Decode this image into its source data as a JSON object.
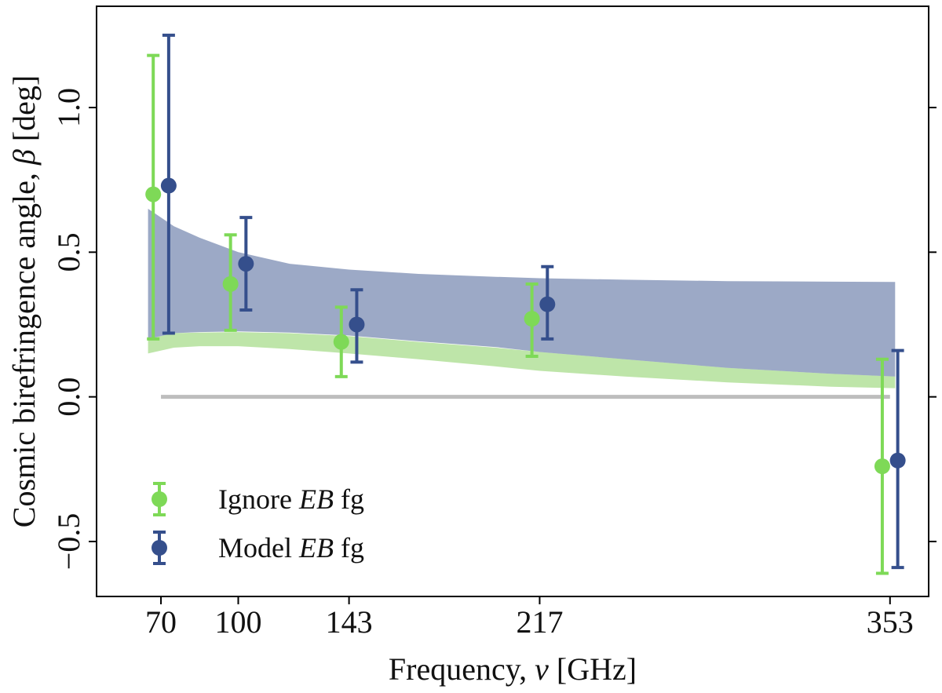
{
  "chart_data": {
    "type": "scatter",
    "xlabel_main": "Frequency, ",
    "xlabel_symbol": "ν",
    "xlabel_unit": " [GHz]",
    "ylabel_main": "Cosmic birefringence angle, ",
    "ylabel_symbol": "β",
    "ylabel_unit": " [deg]",
    "xlim": [
      45,
      368
    ],
    "ylim": [
      -0.69,
      1.35
    ],
    "x_ticks": [
      70,
      100,
      143,
      217,
      353
    ],
    "x_tick_labels": [
      "70",
      "100",
      "143",
      "217",
      "353"
    ],
    "y_ticks": [
      -0.5,
      0.0,
      0.5,
      1.0
    ],
    "y_tick_labels": [
      "−0.5",
      "0.0",
      "0.5",
      "1.0"
    ],
    "zero_line": {
      "x": [
        70,
        353
      ],
      "y": 0.0,
      "color": "#bdbdbd"
    },
    "series": [
      {
        "name": "Ignore EB fg",
        "legend_plain": "Ignore ",
        "legend_italic": "EB",
        "legend_suffix": " fg",
        "color": "#7ed957",
        "points": [
          {
            "x": 67,
            "y": 0.7,
            "lo": 0.2,
            "hi": 1.18
          },
          {
            "x": 97,
            "y": 0.39,
            "lo": 0.23,
            "hi": 0.56
          },
          {
            "x": 140,
            "y": 0.19,
            "lo": 0.07,
            "hi": 0.31
          },
          {
            "x": 214,
            "y": 0.27,
            "lo": 0.14,
            "hi": 0.39
          },
          {
            "x": 350,
            "y": -0.24,
            "lo": -0.61,
            "hi": 0.13
          }
        ]
      },
      {
        "name": "Model EB fg",
        "legend_plain": "Model ",
        "legend_italic": "EB",
        "legend_suffix": " fg",
        "color": "#354f8c",
        "points": [
          {
            "x": 73,
            "y": 0.73,
            "lo": 0.22,
            "hi": 1.25
          },
          {
            "x": 103,
            "y": 0.46,
            "lo": 0.3,
            "hi": 0.62
          },
          {
            "x": 146,
            "y": 0.25,
            "lo": 0.12,
            "hi": 0.37
          },
          {
            "x": 220,
            "y": 0.32,
            "lo": 0.2,
            "hi": 0.45
          },
          {
            "x": 356,
            "y": -0.22,
            "lo": -0.59,
            "hi": 0.16
          }
        ]
      }
    ],
    "bands": [
      {
        "name": "Ignore EB fg band",
        "color": "#a8dc8c",
        "opacity": 0.75,
        "x": [
          65,
          75,
          85,
          100,
          120,
          143,
          170,
          200,
          217,
          250,
          290,
          330,
          355
        ],
        "lower": [
          0.15,
          0.17,
          0.175,
          0.175,
          0.165,
          0.15,
          0.13,
          0.105,
          0.09,
          0.07,
          0.05,
          0.035,
          0.03
        ],
        "upper": [
          0.2,
          0.22,
          0.222,
          0.224,
          0.22,
          0.21,
          0.19,
          0.17,
          0.155,
          0.13,
          0.1,
          0.08,
          0.07
        ]
      },
      {
        "name": "Model EB fg band",
        "color": "#5a6fa0",
        "opacity": 0.6,
        "x": [
          65,
          75,
          85,
          100,
          120,
          143,
          170,
          200,
          217,
          250,
          290,
          330,
          355
        ],
        "lower": [
          0.2,
          0.22,
          0.224,
          0.226,
          0.222,
          0.212,
          0.192,
          0.172,
          0.155,
          0.13,
          0.1,
          0.08,
          0.07
        ],
        "upper": [
          0.65,
          0.59,
          0.55,
          0.5,
          0.46,
          0.44,
          0.425,
          0.415,
          0.41,
          0.405,
          0.4,
          0.398,
          0.397
        ]
      }
    ],
    "legend_position": "lower-left"
  }
}
